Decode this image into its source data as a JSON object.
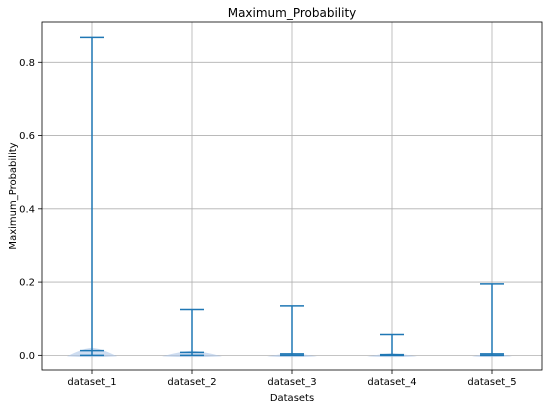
{
  "chart_data": {
    "type": "violin",
    "title": "Maximum_Probability",
    "xlabel": "Datasets",
    "ylabel": "Maximum_Probability",
    "categories": [
      "dataset_1",
      "dataset_2",
      "dataset_3",
      "dataset_4",
      "dataset_5"
    ],
    "yticks": [
      0.0,
      0.2,
      0.4,
      0.6,
      0.8
    ],
    "ytick_labels": [
      "0.0",
      "0.2",
      "0.4",
      "0.6",
      "0.8"
    ],
    "ylim": [
      -0.04,
      0.91
    ],
    "grid": true,
    "series_color": "#1f77b4",
    "violin_fill": "#aec7e8",
    "distributions": [
      {
        "category": "dataset_1",
        "min": 0.0,
        "median": 0.013,
        "max": 0.868,
        "body_halfwidth": 0.25
      },
      {
        "category": "dataset_2",
        "min": 0.0,
        "median": 0.008,
        "max": 0.125,
        "body_halfwidth": 0.3
      },
      {
        "category": "dataset_3",
        "min": 0.0,
        "median": 0.004,
        "max": 0.135,
        "body_halfwidth": 0.25
      },
      {
        "category": "dataset_4",
        "min": 0.0,
        "median": 0.002,
        "max": 0.057,
        "body_halfwidth": 0.25
      },
      {
        "category": "dataset_5",
        "min": 0.0,
        "median": 0.004,
        "max": 0.195,
        "body_halfwidth": 0.2
      }
    ]
  }
}
